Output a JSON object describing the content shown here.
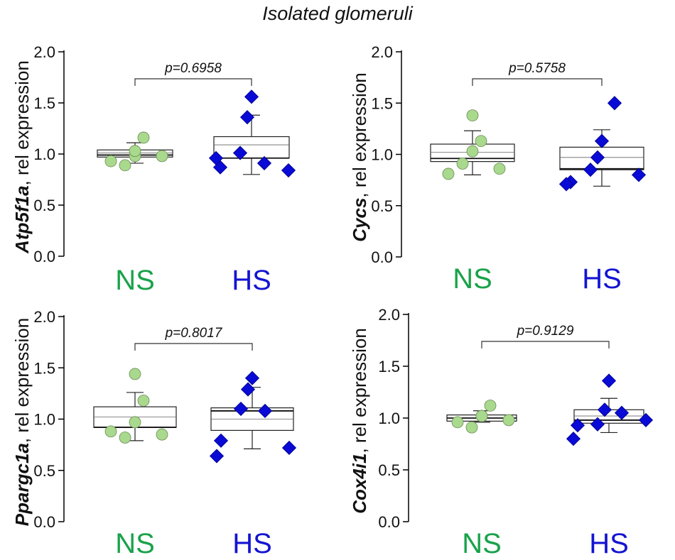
{
  "figure_title": "Isolated glomeruli",
  "colors": {
    "ns": "#1aa24a",
    "hs": "#1414d2",
    "ns_marker": "#a9d98d",
    "hs_marker": "#0a0ad6",
    "axis": "#000000"
  },
  "chart_data": [
    {
      "type": "box",
      "gene": "Atp5f1a",
      "ylabel_suffix": ", rel expression",
      "ylim": [
        0,
        2.0
      ],
      "yticks": [
        "0.0",
        "0.5",
        "1.0",
        "1.5",
        "2.0"
      ],
      "categories": [
        "NS",
        "HS"
      ],
      "p_value_label": "p=0.6958",
      "groups": [
        {
          "name": "NS",
          "q1": 0.97,
          "median": 0.99,
          "q3": 1.04,
          "mean": 1.01,
          "err_low": 0.91,
          "err_high": 1.11,
          "points": [
            0.93,
            0.89,
            0.98,
            1.16,
            1.03,
            0.98
          ]
        },
        {
          "name": "HS",
          "q1": 0.96,
          "median": 0.96,
          "q3": 1.17,
          "mean": 1.09,
          "err_low": 0.8,
          "err_high": 1.38,
          "points": [
            0.87,
            0.96,
            1.01,
            1.36,
            1.56,
            0.91,
            0.84
          ]
        }
      ]
    },
    {
      "type": "box",
      "gene": "Cycs",
      "ylabel_suffix": ", rel expression",
      "ylim": [
        0,
        2.0
      ],
      "yticks": [
        "0.0",
        "0.5",
        "1.0",
        "1.5",
        "2.0"
      ],
      "categories": [
        "NS",
        "HS"
      ],
      "p_value_label": "p=0.5758",
      "groups": [
        {
          "name": "NS",
          "q1": 0.93,
          "median": 0.96,
          "q3": 1.1,
          "mean": 1.02,
          "err_low": 0.8,
          "err_high": 1.23,
          "points": [
            0.81,
            0.91,
            1.03,
            1.13,
            1.38,
            0.86
          ]
        },
        {
          "name": "HS",
          "q1": 0.85,
          "median": 0.86,
          "q3": 1.07,
          "mean": 0.97,
          "err_low": 0.69,
          "err_high": 1.24,
          "points": [
            0.73,
            0.71,
            0.85,
            0.97,
            1.13,
            1.5,
            0.8
          ]
        }
      ]
    },
    {
      "type": "box",
      "gene": "Ppargc1a",
      "ylabel_suffix": ", rel expression",
      "ylim": [
        0,
        2.0
      ],
      "yticks": [
        "0.0",
        "0.5",
        "1.0",
        "1.5",
        "2.0"
      ],
      "categories": [
        "NS",
        "HS"
      ],
      "p_value_label": "p=0.8017",
      "groups": [
        {
          "name": "NS",
          "q1": 0.92,
          "median": 0.92,
          "q3": 1.12,
          "mean": 1.02,
          "err_low": 0.79,
          "err_high": 1.26,
          "points": [
            0.88,
            0.82,
            0.97,
            1.18,
            1.44,
            0.85
          ]
        },
        {
          "name": "HS",
          "q1": 0.89,
          "median": 1.08,
          "q3": 1.11,
          "mean": 1.0,
          "err_low": 0.71,
          "err_high": 1.31,
          "points": [
            0.79,
            0.64,
            1.1,
            1.29,
            1.4,
            1.08,
            0.72
          ]
        }
      ]
    },
    {
      "type": "box",
      "gene": "Cox4i1",
      "ylabel_suffix": ", rel expression",
      "ylim": [
        0,
        2.0
      ],
      "yticks": [
        "0.0",
        "0.5",
        "1.0",
        "1.5",
        "2.0"
      ],
      "categories": [
        "NS",
        "HS"
      ],
      "p_value_label": "p=0.9129",
      "groups": [
        {
          "name": "NS",
          "q1": 0.97,
          "median": 1.0,
          "q3": 1.03,
          "mean": 1.0,
          "err_low": 0.96,
          "err_high": 1.07,
          "points": [
            0.96,
            0.91,
            1.02,
            1.12,
            1.02,
            0.98
          ]
        },
        {
          "name": "HS",
          "q1": 0.95,
          "median": 0.98,
          "q3": 1.08,
          "mean": 1.02,
          "err_low": 0.86,
          "err_high": 1.19,
          "points": [
            0.93,
            0.8,
            0.94,
            1.08,
            1.36,
            1.05,
            0.98
          ]
        }
      ]
    }
  ]
}
